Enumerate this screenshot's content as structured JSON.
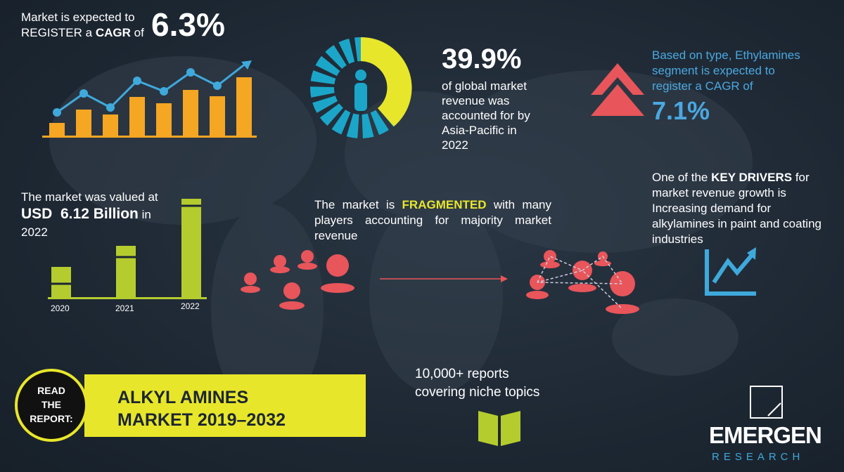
{
  "cagr": {
    "line1": "Market is expected to",
    "line2": "REGISTER a",
    "bold": "CAGR",
    "of": "of",
    "value": "6.3%"
  },
  "share": {
    "value": "39.9%",
    "lines": [
      "of global market",
      "revenue was",
      "accounted for by",
      "Asia-Pacific in",
      "2022"
    ]
  },
  "type_segment": {
    "lines": [
      "Based on type, Ethylamines",
      "segment is expected to",
      "register a CAGR of"
    ],
    "value": "7.1%"
  },
  "valued": {
    "line1": "The market was valued at",
    "amount": "USD  6.12 Billion",
    "in": "in",
    "year": "2022",
    "bar_labels": [
      "2020",
      "2021",
      "2022"
    ]
  },
  "fragmented": {
    "before": "The market is",
    "bold": "FRAGMENTED",
    "after": "with many players accounting for majority market revenue"
  },
  "drivers": {
    "before": "One of the",
    "bold": "KEY DRIVERS",
    "after": "for market revenue growth is Increasing demand for alkylamines in paint and coating industries"
  },
  "read": {
    "badge": [
      "READ",
      "THE",
      "REPORT:"
    ],
    "title": [
      "ALKYL AMINES",
      "MARKET 2019–2032"
    ]
  },
  "reports": {
    "lines": [
      "10,000+ reports",
      "covering niche topics"
    ]
  },
  "logo": {
    "name": "EMERGEN",
    "sub": "RESEARCH"
  }
}
